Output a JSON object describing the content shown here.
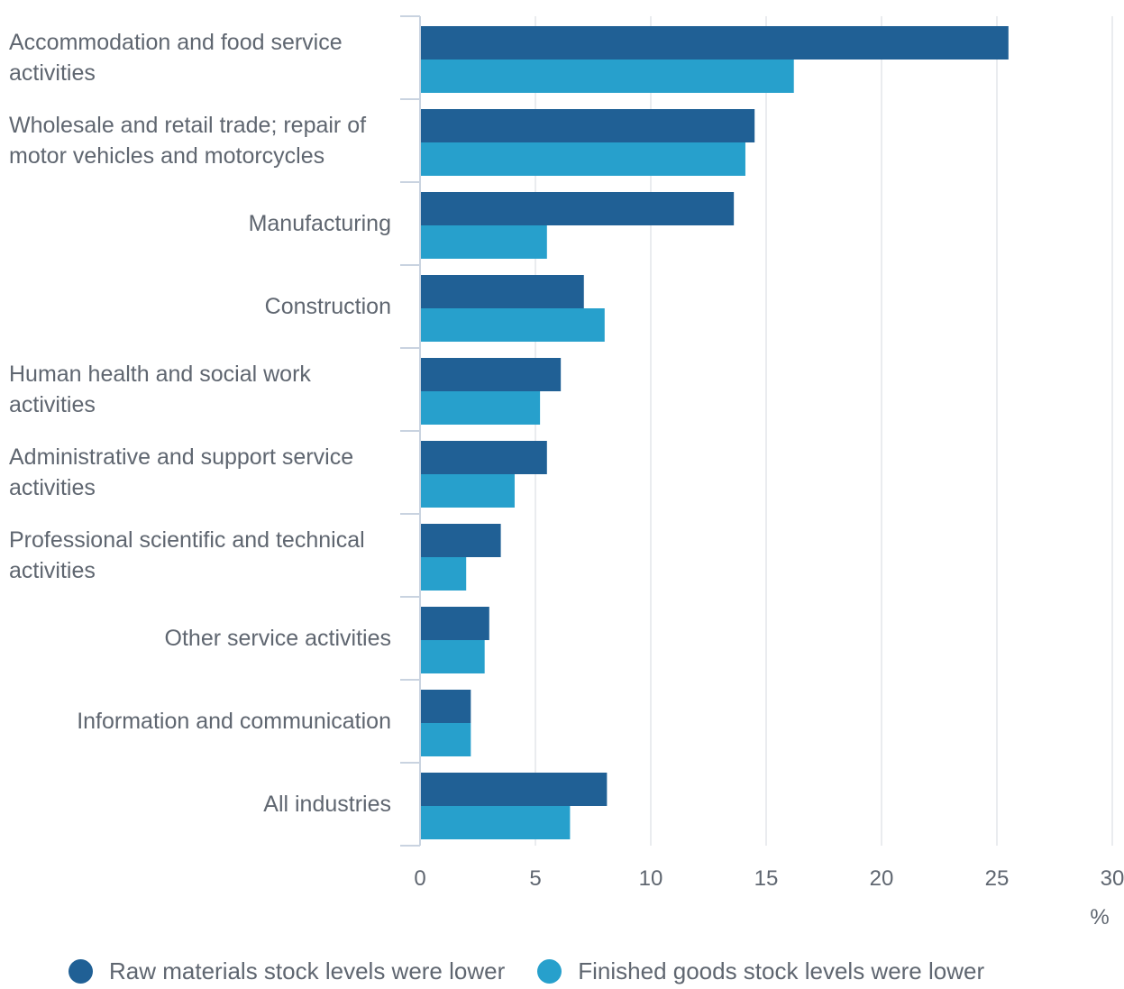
{
  "chart_data": {
    "type": "bar",
    "orientation": "horizontal",
    "categories": [
      "Accommodation and food service activities",
      "Wholesale and retail trade; repair of motor vehicles and motorcycles",
      "Manufacturing",
      "Construction",
      "Human health and social work activities",
      "Administrative and support service activities",
      "Professional scientific and technical activities",
      "Other service activities",
      "Information and communication",
      "All industries"
    ],
    "series": [
      {
        "name": "Raw materials stock levels were lower",
        "color": "#206095",
        "values": [
          25.5,
          14.5,
          13.6,
          7.1,
          6.1,
          5.5,
          3.5,
          3.0,
          2.2,
          8.1
        ]
      },
      {
        "name": "Finished goods stock levels were lower",
        "color": "#27a0cc",
        "values": [
          16.2,
          14.1,
          5.5,
          8.0,
          5.2,
          4.1,
          2.0,
          2.8,
          2.2,
          6.5
        ]
      }
    ],
    "xlim": [
      0,
      30
    ],
    "x_ticks": [
      "0",
      "5",
      "10",
      "15",
      "20",
      "25",
      "30"
    ],
    "x_unit": "%",
    "grid": true,
    "legend_position": "bottom"
  }
}
